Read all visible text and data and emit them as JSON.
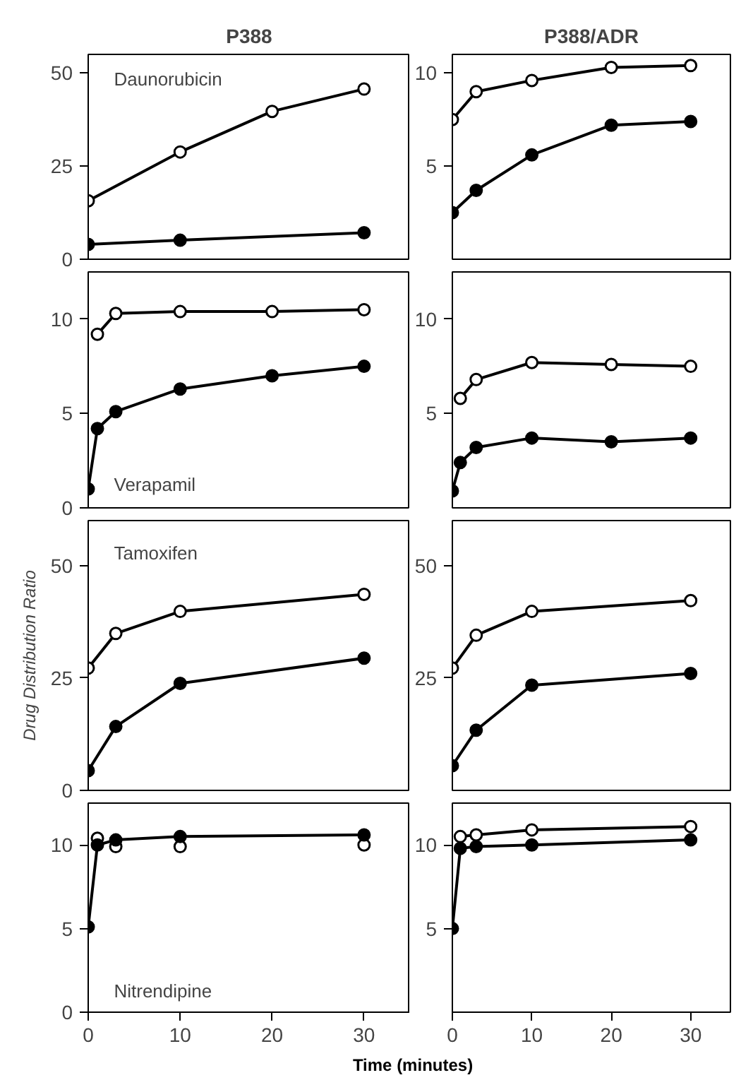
{
  "chart_data": [
    {
      "type": "line",
      "title": "P388",
      "annotations": [
        "Daunorubicin"
      ],
      "xlim": [
        0,
        35
      ],
      "ylim": [
        0,
        55
      ],
      "yticks": [
        0,
        25,
        50
      ],
      "tick_labels": "y",
      "grid": false,
      "line_style": "solid",
      "series": [
        {
          "color": "#000000",
          "marker": "circle_open",
          "x": [
            0,
            10,
            20,
            30
          ],
          "values": [
            15.7,
            28.8,
            39.7,
            45.7
          ]
        },
        {
          "color": "#000000",
          "marker": "circle",
          "x": [
            0,
            10,
            30
          ],
          "values": [
            4,
            5.1,
            7.1
          ]
        }
      ]
    },
    {
      "type": "line",
      "title": "P388/ADR",
      "xlim": [
        0,
        35
      ],
      "ylim": [
        0,
        11
      ],
      "yticks": [
        5,
        10
      ],
      "tick_labels": "y",
      "grid": false,
      "line_style": "solid",
      "series": [
        {
          "color": "#000000",
          "marker": "circle_open",
          "x": [
            0,
            3,
            10,
            20,
            30
          ],
          "values": [
            7.5,
            9.0,
            9.6,
            10.3,
            10.4
          ]
        },
        {
          "color": "#000000",
          "marker": "circle",
          "x": [
            0,
            3,
            10,
            20,
            30
          ],
          "values": [
            2.5,
            3.7,
            5.6,
            7.2,
            7.4
          ]
        }
      ]
    },
    {
      "type": "line",
      "annotations": [
        "Verapamil"
      ],
      "xlim": [
        0,
        35
      ],
      "ylim": [
        0,
        12.5
      ],
      "yticks": [
        0,
        5,
        10
      ],
      "tick_labels": "y",
      "grid": false,
      "line_style": "solid",
      "series": [
        {
          "color": "#000000",
          "marker": "circle_open",
          "x": [
            1,
            3,
            10,
            20,
            30
          ],
          "values": [
            9.2,
            10.3,
            10.4,
            10.4,
            10.5
          ]
        },
        {
          "color": "#000000",
          "marker": "circle",
          "x": [
            0,
            1,
            3,
            10,
            20,
            30
          ],
          "values": [
            1.0,
            4.2,
            5.1,
            6.3,
            7.0,
            7.5
          ]
        }
      ]
    },
    {
      "type": "line",
      "xlim": [
        0,
        35
      ],
      "ylim": [
        0,
        12.5
      ],
      "yticks": [
        5,
        10
      ],
      "tick_labels": "y",
      "grid": false,
      "line_style": "solid",
      "series": [
        {
          "color": "#000000",
          "marker": "circle_open",
          "x": [
            1,
            3,
            10,
            20,
            30
          ],
          "values": [
            5.8,
            6.8,
            7.7,
            7.6,
            7.5
          ]
        },
        {
          "color": "#000000",
          "marker": "circle",
          "x": [
            0,
            1,
            3,
            10,
            20,
            30
          ],
          "values": [
            0.9,
            2.4,
            3.2,
            3.7,
            3.5,
            3.7
          ]
        }
      ]
    },
    {
      "type": "line",
      "ylabel": "Drug Distribution Ratio",
      "annotations": [
        "Tamoxifen"
      ],
      "xlim": [
        0,
        35
      ],
      "ylim": [
        0,
        60
      ],
      "yticks": [
        0,
        25,
        50
      ],
      "tick_labels": "y",
      "grid": false,
      "line_style": "solid",
      "series": [
        {
          "color": "#000000",
          "marker": "circle_open",
          "x": [
            0,
            3,
            10,
            30
          ],
          "values": [
            27.2,
            34.9,
            39.8,
            43.6
          ]
        },
        {
          "color": "#000000",
          "marker": "circle",
          "x": [
            0,
            3,
            10,
            30
          ],
          "values": [
            4.4,
            14.2,
            23.8,
            29.4
          ]
        }
      ]
    },
    {
      "type": "line",
      "xlim": [
        0,
        35
      ],
      "ylim": [
        0,
        60
      ],
      "yticks": [
        25,
        50
      ],
      "tick_labels": "y",
      "grid": false,
      "line_style": "solid",
      "series": [
        {
          "color": "#000000",
          "marker": "circle_open",
          "x": [
            0,
            3,
            10,
            30
          ],
          "values": [
            27.2,
            34.5,
            39.8,
            42.2
          ]
        },
        {
          "color": "#000000",
          "marker": "circle",
          "x": [
            0,
            3,
            10,
            30
          ],
          "values": [
            5.5,
            13.4,
            23.4,
            26
          ]
        }
      ]
    },
    {
      "type": "line",
      "xlabel": "Time (minutes)",
      "annotations": [
        "Nitrendipine"
      ],
      "xlim": [
        0,
        35
      ],
      "ylim": [
        0,
        12.5
      ],
      "xticks": [
        0,
        10,
        20,
        30
      ],
      "yticks": [
        0,
        5,
        10
      ],
      "grid": false,
      "line_style": "solid",
      "series": [
        {
          "type": "scatter",
          "color": "#000000",
          "marker": "circle_open",
          "x": [
            1,
            3,
            10,
            30
          ],
          "values": [
            10.4,
            9.9,
            9.9,
            10.0
          ]
        },
        {
          "color": "#000000",
          "marker": "circle",
          "x": [
            0,
            1,
            3,
            10,
            30
          ],
          "values": [
            5.1,
            10.0,
            10.3,
            10.5,
            10.6
          ]
        }
      ]
    },
    {
      "type": "line",
      "xlim": [
        0,
        35
      ],
      "ylim": [
        0,
        12.5
      ],
      "xticks": [
        0,
        10,
        20,
        30
      ],
      "yticks": [
        5,
        10
      ],
      "grid": false,
      "line_style": "solid",
      "series": [
        {
          "color": "#000000",
          "marker": "circle_open",
          "x": [
            1,
            3,
            10,
            30
          ],
          "values": [
            10.5,
            10.6,
            10.9,
            11.1
          ]
        },
        {
          "color": "#000000",
          "marker": "circle",
          "x": [
            0,
            1,
            3,
            10,
            30
          ],
          "values": [
            5.0,
            9.8,
            9.9,
            10.0,
            10.3
          ]
        }
      ]
    }
  ]
}
